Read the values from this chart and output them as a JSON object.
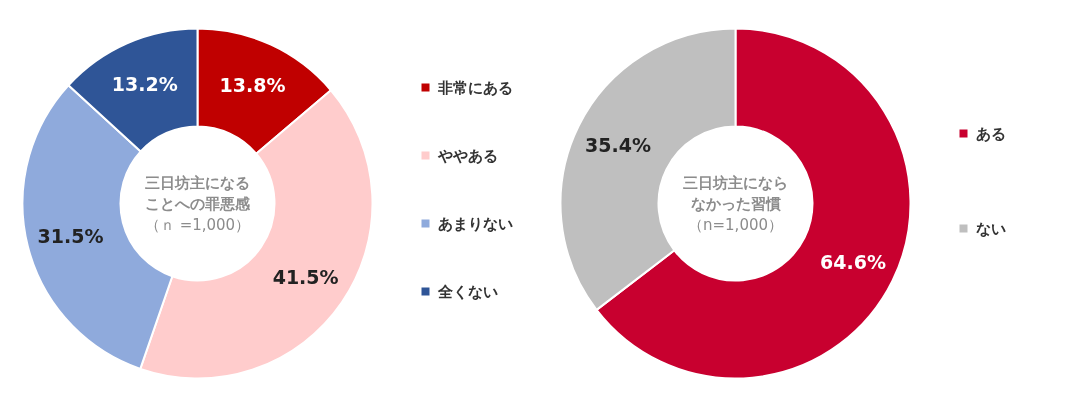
{
  "chart_data": [
    {
      "type": "donut",
      "title": "三日坊主になることへの罪悪感",
      "subtitle": "（ｎ =1,000）",
      "categories": [
        "非常にある",
        "ややある",
        "あまりない",
        "全くない"
      ],
      "values": [
        13.8,
        41.5,
        31.5,
        13.2
      ],
      "colors": [
        "#c00000",
        "#ffcccc",
        "#8faadc",
        "#2f5597"
      ],
      "value_labels": [
        "13.8%",
        "41.5%",
        "31.5%",
        "13.2%"
      ],
      "legend": "right"
    },
    {
      "type": "donut",
      "title": "三日坊主にならなかった習慣",
      "subtitle": "（n=1,000）",
      "categories": [
        "ある",
        "ない"
      ],
      "values": [
        64.6,
        35.4
      ],
      "colors": [
        "#c8002f",
        "#bfbfbf"
      ],
      "value_labels": [
        "64.6%",
        "35.4%"
      ],
      "legend": "right"
    }
  ]
}
